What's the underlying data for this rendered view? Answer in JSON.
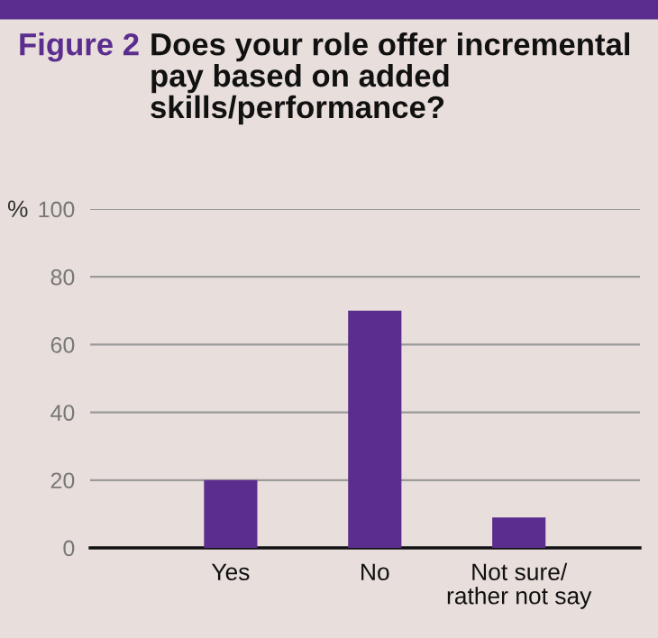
{
  "chart_data": {
    "type": "bar",
    "title": "Figure 2",
    "subtitle": "Does your role offer incremental pay based on added skills/performance?",
    "ylabel": "%",
    "categories": [
      "Yes",
      "No",
      "Not sure/\nrather not say"
    ],
    "values": [
      20,
      70,
      9
    ],
    "color": "#5b2d8e",
    "ylim": [
      0,
      100
    ],
    "yticks": [
      0,
      20,
      40,
      60,
      80,
      100
    ],
    "grid": "y"
  }
}
